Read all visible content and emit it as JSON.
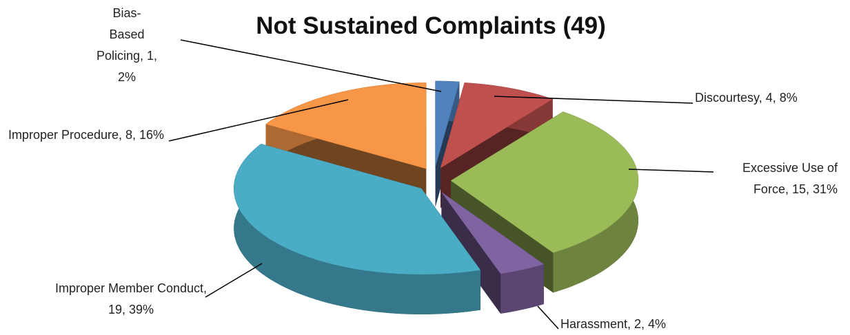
{
  "chart_data": {
    "type": "pie3d",
    "title": "Not Sustained Complaints (49)",
    "values": [
      1,
      4,
      15,
      2,
      19,
      8
    ],
    "value_labels": [
      "Bias-Based Policing, 1, 2%",
      "Discourtesy, 4, 8%",
      "Excessive Use of Force, 15, 31%",
      "Harassment, 2, 4%",
      "Improper Member Conduct, 19, 39%",
      "Improper Procedure, 8, 16%"
    ],
    "colors": [
      "#4f81bd",
      "#c0504d",
      "#9bbb59",
      "#8064a2",
      "#4bacc6",
      "#f79646"
    ]
  }
}
